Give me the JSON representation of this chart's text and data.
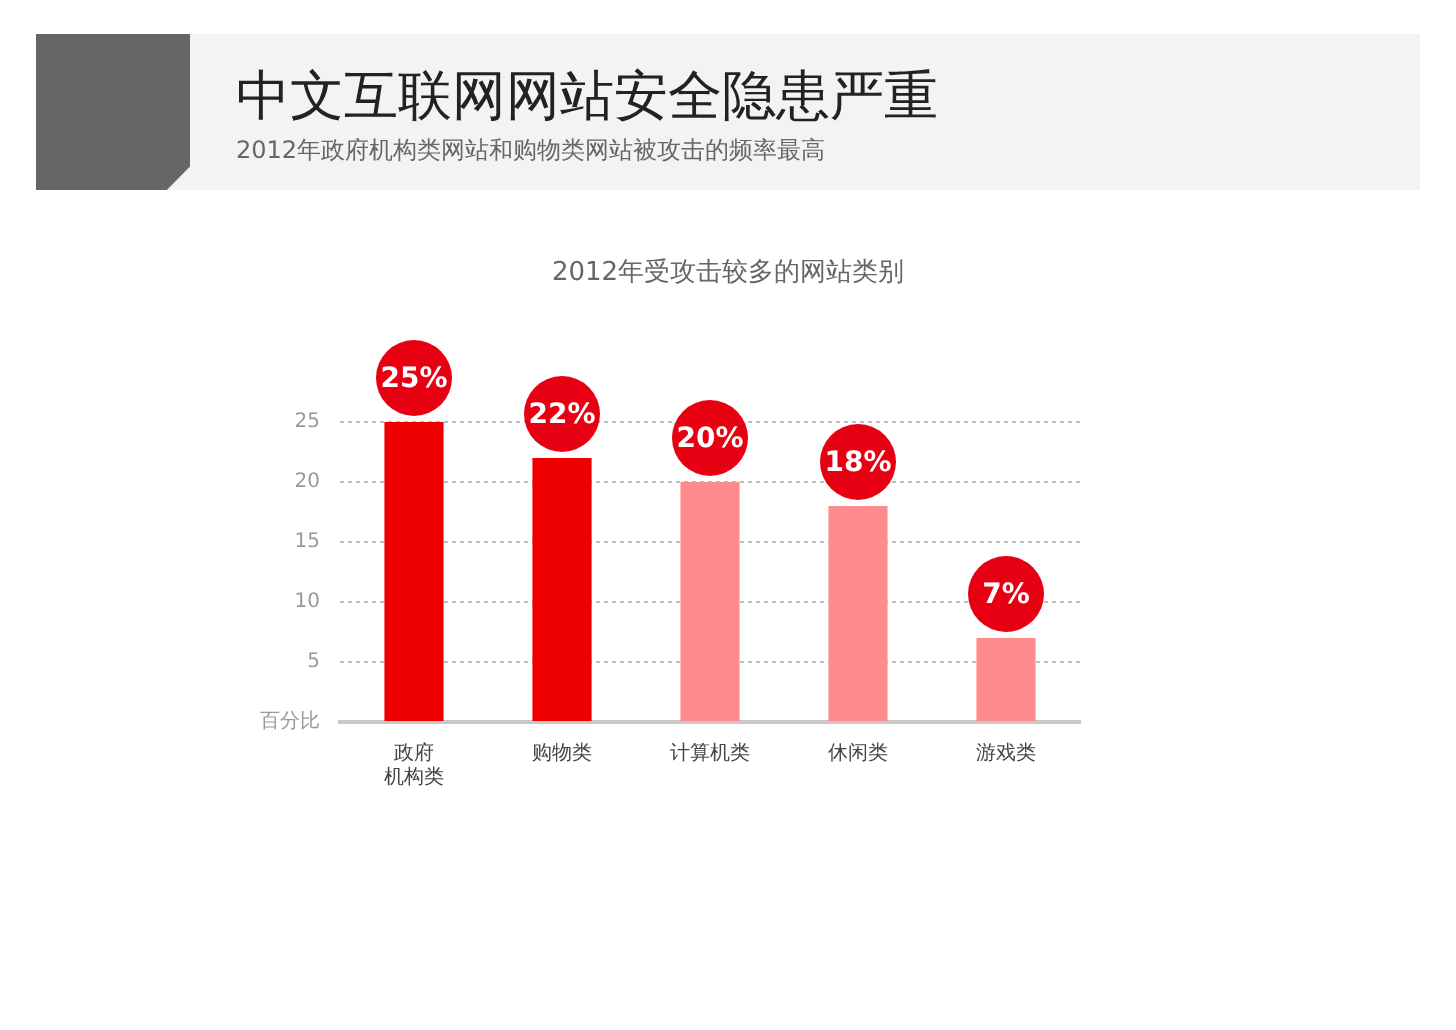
{
  "chart_data": {
    "type": "bar",
    "title": "中文互联网网站安全隐患严重",
    "subtitle": "2012年政府机构类网站和购物类网站被攻击的频率最高",
    "annotations": [
      "2012年受攻击较多的网站类别"
    ],
    "categories": [
      "政府机构类",
      "购物类",
      "计算机类",
      "休闲类",
      "游戏类"
    ],
    "values": [
      25,
      22,
      20,
      18,
      7
    ],
    "value_labels": [
      "25%",
      "22%",
      "20%",
      "18%",
      "7%"
    ],
    "colors": [
      "#ee0000",
      "#ee0000",
      "#ff8c8c",
      "#ff8c8c",
      "#ff8c8c"
    ],
    "ylim": [
      0,
      25
    ],
    "yticks": [
      {
        "value": 0,
        "label": "百分比"
      },
      5,
      10,
      15,
      20,
      25
    ],
    "grid": "y"
  }
}
